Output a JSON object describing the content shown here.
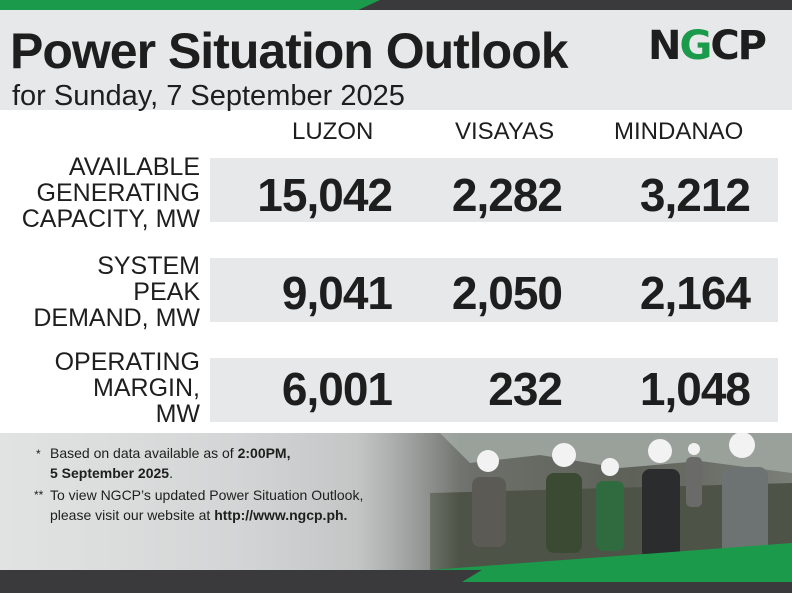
{
  "header": {
    "title": "Power Situation Outlook",
    "subtitle": "for Sunday, 7 September 2025",
    "logo_text": "NGCP"
  },
  "columns": [
    "LUZON",
    "VISAYAS",
    "MINDANAO"
  ],
  "rows": [
    {
      "label": [
        "AVAILABLE",
        "GENERATING",
        "CAPACITY, MW"
      ],
      "values": [
        "15,042",
        "2,282",
        "3,212"
      ]
    },
    {
      "label": [
        "SYSTEM",
        "PEAK",
        "DEMAND, MW"
      ],
      "values": [
        "9,041",
        "2,050",
        "2,164"
      ]
    },
    {
      "label": [
        "OPERATING",
        "MARGIN,",
        "MW"
      ],
      "values": [
        "6,001",
        "232",
        "1,048"
      ]
    }
  ],
  "notes": {
    "n1_star": "*",
    "n1_line1_prefix": "Based on data available as of ",
    "n1_line1_bold": "2:00PM,",
    "n1_line2_bold": "5 September 2025",
    "n1_line2_suffix": ".",
    "n2_star": "**",
    "n2_line1": "To view NGCP’s updated Power Situation Outlook,",
    "n2_line2_prefix": "please visit our website at ",
    "n2_line2_bold": "http://www.ngcp.ph."
  },
  "colors": {
    "brand_green": "#1b9a4c",
    "dark": "#3a3a3c",
    "band": "#e7e8e9"
  }
}
